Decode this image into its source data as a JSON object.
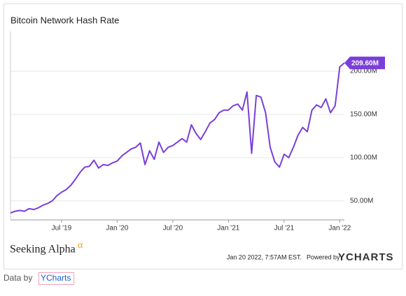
{
  "chart_data": {
    "type": "line",
    "title": "Bitcoin Network Hash Rate",
    "categories": [
      null,
      null,
      null,
      null,
      null,
      null,
      null,
      null,
      null,
      null,
      null,
      "Jul '19",
      null,
      null,
      null,
      null,
      null,
      null,
      null,
      null,
      null,
      null,
      null,
      "Jan '20",
      null,
      null,
      null,
      null,
      null,
      null,
      null,
      null,
      null,
      null,
      null,
      "Jul '20",
      null,
      null,
      null,
      null,
      null,
      null,
      null,
      null,
      null,
      null,
      null,
      "Jan '21",
      null,
      null,
      null,
      null,
      null,
      null,
      null,
      null,
      null,
      null,
      null,
      "Jul '21",
      null,
      null,
      null,
      null,
      null,
      null,
      null,
      null,
      null,
      null,
      null,
      "Jan '22",
      null
    ],
    "series": [
      {
        "name": "Bitcoin Network Hash Rate",
        "color": "#7a3fd9",
        "values": [
          36,
          38,
          39,
          38,
          41,
          40,
          42,
          45,
          47,
          50,
          56,
          60,
          63,
          68,
          75,
          83,
          89,
          90,
          97,
          88,
          92,
          91,
          94,
          96,
          102,
          106,
          110,
          112,
          117,
          92,
          108,
          98,
          118,
          106,
          112,
          114,
          118,
          122,
          118,
          138,
          128,
          121,
          130,
          140,
          144,
          152,
          155,
          155,
          160,
          162,
          155,
          176,
          105,
          172,
          170,
          152,
          112,
          95,
          89,
          104,
          100,
          112,
          126,
          135,
          130,
          155,
          161,
          158,
          168,
          152,
          160,
          205,
          209.6
        ]
      }
    ],
    "last_value": {
      "value": 209.6,
      "label": "209.60M"
    },
    "ylim": [
      28,
      246
    ],
    "yticks": [
      {
        "value": 50,
        "label": "50.00M"
      },
      {
        "value": 100,
        "label": "100.00M"
      },
      {
        "value": 150,
        "label": "150.00M"
      },
      {
        "value": 200,
        "label": "200.00M"
      }
    ],
    "grid": true
  },
  "footer": {
    "brand": "Seeking Alpha",
    "brand_mark": "α",
    "timestamp": "Jan 20 2022, 7:57AM EST.",
    "powered_by": "Powered by",
    "provider": "YCHARTS"
  },
  "credit": {
    "text": "Data by",
    "link": "YCharts"
  }
}
